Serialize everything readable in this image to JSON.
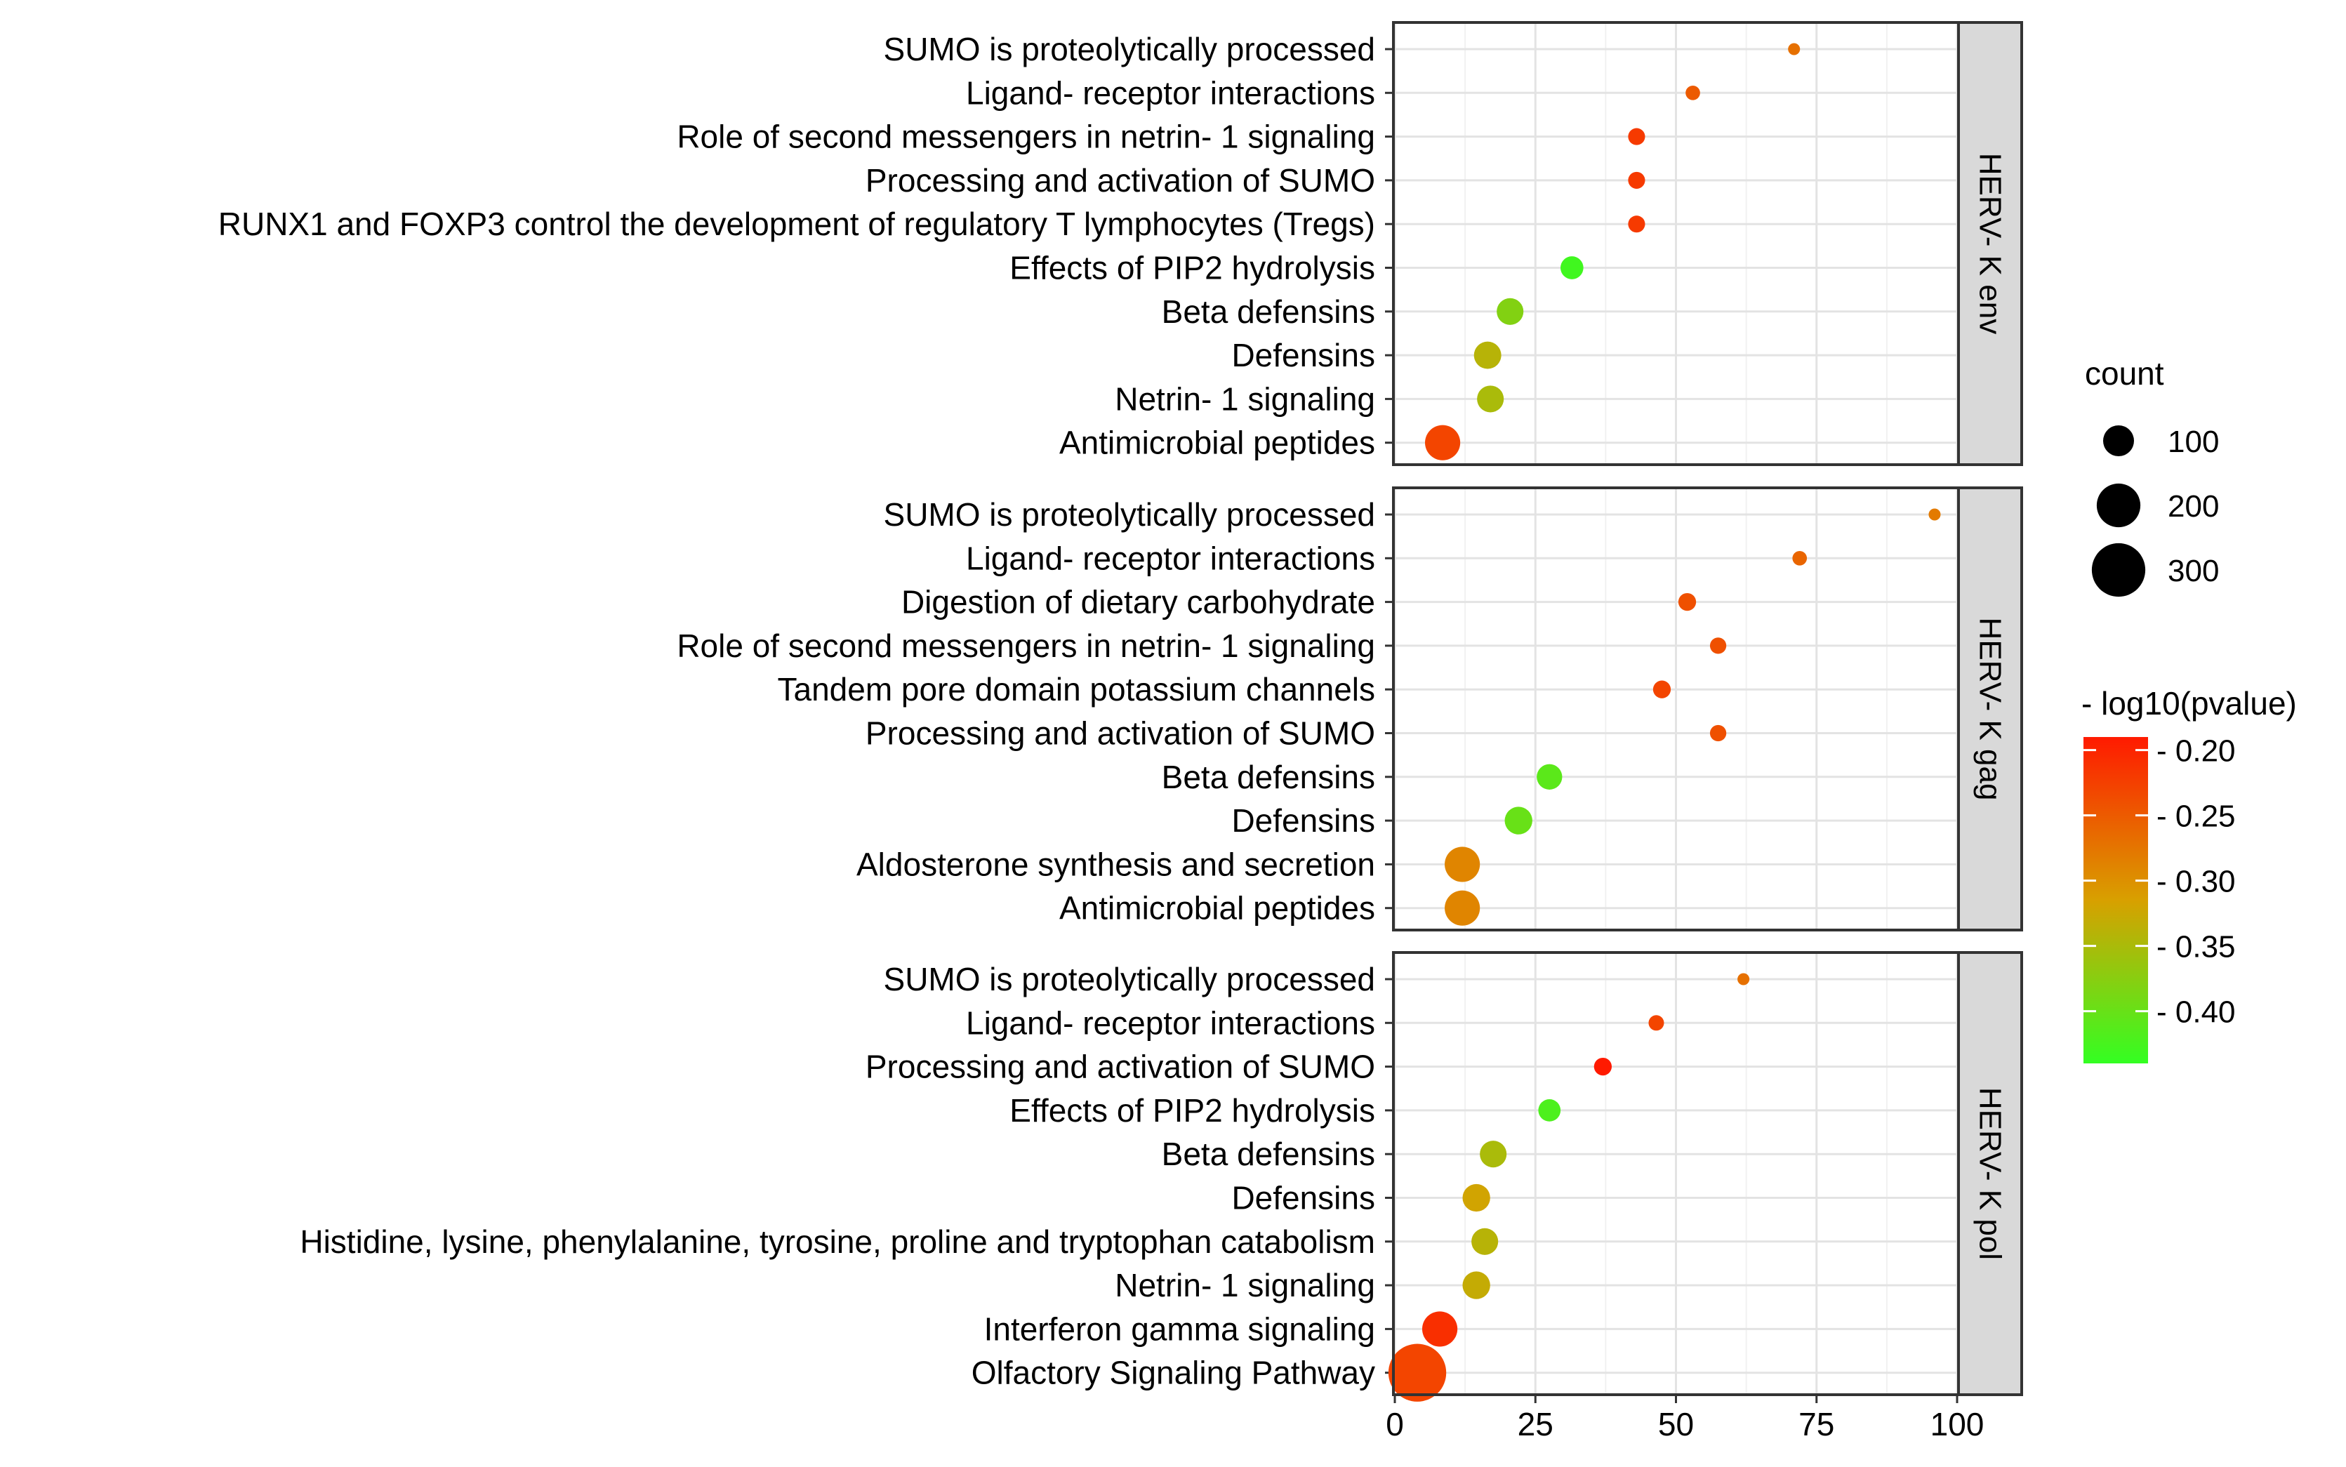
{
  "chart_data": {
    "type": "scatter",
    "subtype": "faceted-bubble",
    "title": "",
    "xlabel": "",
    "ylabel": "",
    "xlim": [
      0,
      100
    ],
    "x_ticks": [
      0,
      25,
      50,
      75,
      100
    ],
    "x_tick_labels": [
      "0",
      "25",
      "50",
      "75",
      "100"
    ],
    "grid": true,
    "legend_position": "right",
    "size_legend": {
      "title": "count",
      "values": [
        100,
        200,
        300
      ],
      "labels": [
        "100",
        "200",
        "300"
      ]
    },
    "color_legend": {
      "title": "- log10(pvalue)",
      "range": [
        -0.44,
        -0.19
      ],
      "ticks": [
        -0.2,
        -0.25,
        -0.3,
        -0.35,
        -0.4
      ],
      "tick_labels": [
        "- 0.20",
        "- 0.25",
        "- 0.30",
        "- 0.35",
        "- 0.40"
      ],
      "color_high": "#ff1a00",
      "color_low": "#33ff22"
    },
    "panels": [
      {
        "label": "HERV- K env",
        "points": [
          {
            "term": "SUMO is proteolytically processed",
            "x": 71,
            "count": 15,
            "color_value": -0.27
          },
          {
            "term": "Ligand- receptor interactions",
            "x": 53,
            "count": 22,
            "color_value": -0.25
          },
          {
            "term": "Role of second messengers in netrin- 1 signaling",
            "x": 43,
            "count": 30,
            "color_value": -0.22
          },
          {
            "term": "Processing and activation of SUMO",
            "x": 43,
            "count": 30,
            "color_value": -0.22
          },
          {
            "term": "RUNX1 and FOXP3 control the development of regulatory T lymphocytes (Tregs)",
            "x": 43,
            "count": 30,
            "color_value": -0.22
          },
          {
            "term": "Effects of PIP2 hydrolysis",
            "x": 31.5,
            "count": 55,
            "color_value": -0.43
          },
          {
            "term": "Beta defensins",
            "x": 20.5,
            "count": 75,
            "color_value": -0.38
          },
          {
            "term": "Defensins",
            "x": 16.5,
            "count": 78,
            "color_value": -0.34
          },
          {
            "term": "Netrin- 1 signaling",
            "x": 17,
            "count": 75,
            "color_value": -0.35
          },
          {
            "term": "Antimicrobial peptides",
            "x": 8.5,
            "count": 130,
            "color_value": -0.23
          }
        ]
      },
      {
        "label": "HERV- K gag",
        "points": [
          {
            "term": "SUMO is proteolytically processed",
            "x": 96,
            "count": 15,
            "color_value": -0.28
          },
          {
            "term": "Ligand- receptor interactions",
            "x": 72,
            "count": 22,
            "color_value": -0.26
          },
          {
            "term": "Digestion of dietary carbohydrate",
            "x": 52,
            "count": 33,
            "color_value": -0.24
          },
          {
            "term": "Role of second messengers in netrin- 1 signaling",
            "x": 57.5,
            "count": 28,
            "color_value": -0.24
          },
          {
            "term": "Tandem pore domain potassium channels",
            "x": 47.5,
            "count": 33,
            "color_value": -0.23
          },
          {
            "term": "Processing and activation of SUMO",
            "x": 57.5,
            "count": 28,
            "color_value": -0.24
          },
          {
            "term": "Beta defensins",
            "x": 27.5,
            "count": 68,
            "color_value": -0.41
          },
          {
            "term": "Defensins",
            "x": 22,
            "count": 80,
            "color_value": -0.4
          },
          {
            "term": "Aldosterone synthesis and secretion",
            "x": 12,
            "count": 130,
            "color_value": -0.29
          },
          {
            "term": "Antimicrobial peptides",
            "x": 12,
            "count": 130,
            "color_value": -0.29
          }
        ]
      },
      {
        "label": "HERV- K pol",
        "points": [
          {
            "term": "SUMO is proteolytically processed",
            "x": 62,
            "count": 15,
            "color_value": -0.27
          },
          {
            "term": "Ligand- receptor interactions",
            "x": 46.5,
            "count": 25,
            "color_value": -0.23
          },
          {
            "term": "Processing and activation of SUMO",
            "x": 37,
            "count": 33,
            "color_value": -0.19
          },
          {
            "term": "Effects of PIP2 hydrolysis",
            "x": 27.5,
            "count": 52,
            "color_value": -0.42
          },
          {
            "term": "Beta defensins",
            "x": 17.5,
            "count": 75,
            "color_value": -0.35
          },
          {
            "term": "Defensins",
            "x": 14.5,
            "count": 80,
            "color_value": -0.32
          },
          {
            "term": "Histidine, lysine, phenylalanine, tyrosine, proline and tryptophan catabolism",
            "x": 16,
            "count": 75,
            "color_value": -0.34
          },
          {
            "term": "Netrin- 1 signaling",
            "x": 14.5,
            "count": 80,
            "color_value": -0.33
          },
          {
            "term": "Interferon gamma signaling",
            "x": 8,
            "count": 130,
            "color_value": -0.21
          },
          {
            "term": "Olfactory Signaling Pathway",
            "x": 4,
            "count": 350,
            "color_value": -0.23
          }
        ]
      }
    ]
  }
}
